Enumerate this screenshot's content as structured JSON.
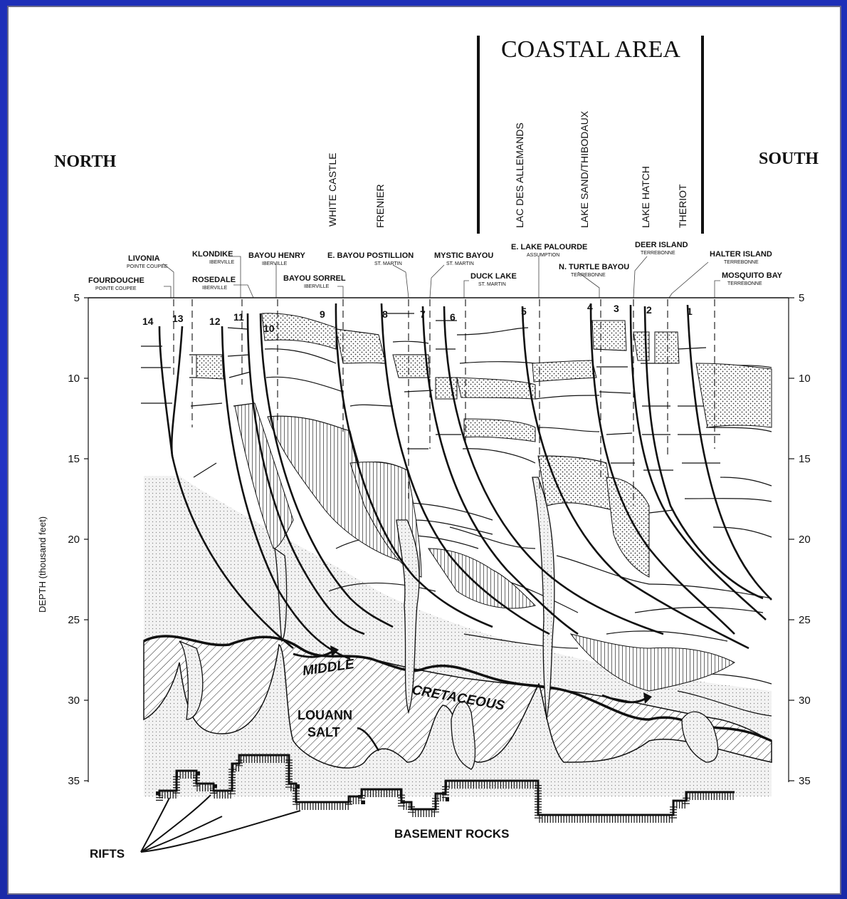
{
  "header": {
    "coastal_area": "COASTAL AREA",
    "north": "NORTH",
    "south": "SOUTH"
  },
  "top_fields": [
    {
      "id": "white-castle",
      "label": "WHITE CASTLE"
    },
    {
      "id": "frenier",
      "label": "FRENIER"
    },
    {
      "id": "lac-des-allemands",
      "label": "LAC DES ALLEMANDS"
    },
    {
      "id": "lake-sand-thibodaux",
      "label": "LAKE SAND/THIBODAUX"
    },
    {
      "id": "lake-hatch",
      "label": "LAKE HATCH"
    },
    {
      "id": "theriot",
      "label": "THERIOT"
    }
  ],
  "fields": [
    {
      "id": "livonia",
      "name": "LIVONIA",
      "parish": "POINTE COUPEE"
    },
    {
      "id": "fourdouche",
      "name": "FOURDOUCHE",
      "parish": "POINTE COUPEE"
    },
    {
      "id": "klondike",
      "name": "KLONDIKE",
      "parish": "IBERVILLE"
    },
    {
      "id": "rosedale",
      "name": "ROSEDALE",
      "parish": "IBERVILLE"
    },
    {
      "id": "bayou-henry",
      "name": "BAYOU HENRY",
      "parish": "IBERVILLE"
    },
    {
      "id": "bayou-sorrel",
      "name": "BAYOU SORREL",
      "parish": "IBERVILLE"
    },
    {
      "id": "e-bayou-postillion",
      "name": "E. BAYOU POSTILLION",
      "parish": "ST. MARTIN"
    },
    {
      "id": "mystic-bayou",
      "name": "MYSTIC BAYOU",
      "parish": "ST. MARTIN"
    },
    {
      "id": "duck-lake",
      "name": "DUCK LAKE",
      "parish": "ST. MARTIN"
    },
    {
      "id": "e-lake-palourde",
      "name": "E. LAKE PALOURDE",
      "parish": "ASSUMPTION"
    },
    {
      "id": "n-turtle-bayou",
      "name": "N. TURTLE BAYOU",
      "parish": "TERREBONNE"
    },
    {
      "id": "deer-island",
      "name": "DEER ISLAND",
      "parish": "TERREBONNE"
    },
    {
      "id": "halter-island",
      "name": "HALTER ISLAND",
      "parish": "TERREBONNE"
    },
    {
      "id": "mosquito-bay",
      "name": "MOSQUITO BAY",
      "parish": "TERREBONNE"
    }
  ],
  "fault_numbers": [
    "14",
    "13",
    "12",
    "11",
    "10",
    "9",
    "8",
    "7",
    "6",
    "5",
    "4",
    "3",
    "2",
    "1"
  ],
  "depth_axis": {
    "label": "DEPTH (thousand feet)",
    "ticks": [
      "5",
      "10",
      "15",
      "20",
      "25",
      "30",
      "35"
    ]
  },
  "units": {
    "middle": "MIDDLE",
    "cretaceous": "CRETACEOUS",
    "louann1": "LOUANN",
    "louann2": "SALT",
    "basement": "BASEMENT ROCKS",
    "rifts": "RIFTS"
  },
  "colors": {
    "ink": "#111111",
    "background_blue": "#2233c4",
    "panel": "#ffffff"
  }
}
